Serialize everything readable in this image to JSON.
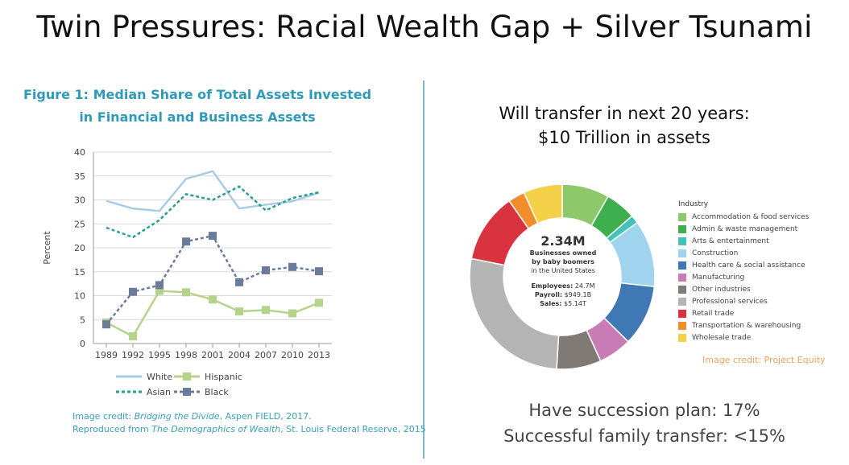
{
  "title": "Twin Pressures: Racial Wealth Gap + Silver Tsunami",
  "figure_title_line1": "Figure 1: Median Share of Total Assets Invested",
  "figure_title_line2": "in Financial and Business Assets",
  "left_credit": {
    "prefix1": "Image credit: ",
    "italic1": "Bridging the Divide",
    "suffix1": ", Aspen FIELD, 2017.",
    "prefix2": "Reproduced from ",
    "italic2": "The Demographics of Wealth",
    "suffix2": ", St. Louis Federal Reserve, 2015"
  },
  "transfer_line1": "Will transfer in next 20 years:",
  "transfer_line2": "$10 Trillion in assets",
  "donut_center": {
    "big": "2.34M",
    "line1": "Businesses owned",
    "line2": "by baby boomers",
    "line3": "in the United States",
    "employees_label": "Employees:",
    "employees_value": " 24.7M",
    "payroll_label": "Payroll:",
    "payroll_value": " $949.1B",
    "sales_label": "Sales:",
    "sales_value": " $5.14T"
  },
  "legend_title": "Industry",
  "right_credit": "Image credit: Project Equity",
  "stats_line1": "Have succession plan: 17%",
  "stats_line2": "Successful family transfer: <15%",
  "chart_data": [
    {
      "type": "line",
      "title": "Figure 1: Median Share of Total Assets Invested in Financial and Business Assets",
      "xlabel": "",
      "ylabel": "Percent",
      "x": [
        "1989",
        "1992",
        "1995",
        "1998",
        "2001",
        "2004",
        "2007",
        "2010",
        "2013"
      ],
      "ylim": [
        0,
        40
      ],
      "yticks": [
        0,
        5,
        10,
        15,
        20,
        25,
        30,
        35,
        40
      ],
      "grid": true,
      "legend_position": "bottom",
      "series": [
        {
          "name": "White",
          "style": "solid",
          "color": "#a9cce3",
          "values": [
            29.8,
            28.2,
            27.7,
            34.4,
            36.0,
            28.2,
            29.0,
            29.7,
            31.5
          ]
        },
        {
          "name": "Asian",
          "style": "dotted",
          "color": "#2a9d8f",
          "values": [
            24.2,
            22.2,
            25.8,
            31.2,
            30.0,
            32.8,
            27.8,
            30.4,
            31.6
          ]
        },
        {
          "name": "Hispanic",
          "style": "solid-square",
          "color": "#b5d38a",
          "values": [
            4.4,
            1.5,
            11.0,
            10.7,
            9.2,
            6.7,
            7.0,
            6.3,
            8.5
          ]
        },
        {
          "name": "Black",
          "style": "dashed-square",
          "color": "#6b7b9c",
          "values": [
            4.0,
            10.8,
            12.2,
            21.3,
            22.5,
            12.8,
            15.3,
            16.0,
            15.1
          ]
        }
      ]
    },
    {
      "type": "pie",
      "title": "",
      "labels": [
        "Accommodation & food services",
        "Admin & waste management",
        "Arts & entertainment",
        "Construction",
        "Health care & social assistance",
        "Manufacturing",
        "Other industries",
        "Professional services",
        "Retail trade",
        "Transportation & warehousing",
        "Wholesale trade"
      ],
      "values": [
        8.5,
        5.5,
        1.5,
        12,
        11,
        6,
        8,
        28,
        12.5,
        3,
        7
      ],
      "colors": [
        "#8dc96b",
        "#3fae4f",
        "#42c2b8",
        "#9fd3ee",
        "#3f78b4",
        "#c97bb6",
        "#7f7a76",
        "#b4b4b4",
        "#d9333f",
        "#f08e2c",
        "#f5d14a"
      ]
    }
  ]
}
